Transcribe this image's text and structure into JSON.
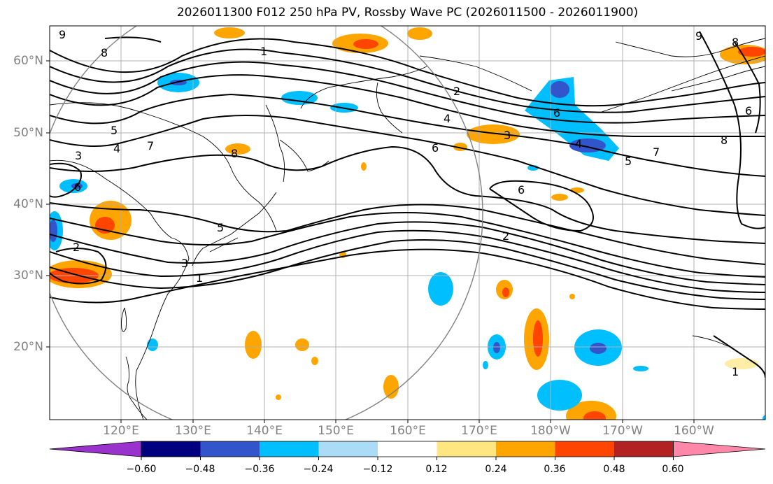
{
  "title": "2026011300 F012 250 hPa PV, Rossby Wave PC (2026011500 - 2026011900)",
  "lat_labels": [
    "60°N",
    "50°N",
    "40°N",
    "30°N",
    "20°N"
  ],
  "lon_labels": [
    "120°E",
    "130°E",
    "140°E",
    "150°E",
    "160°E",
    "170°E",
    "180°W",
    "170°W",
    "160°W"
  ],
  "colorbar": {
    "ticks": [
      "−0.60",
      "−0.48",
      "−0.36",
      "−0.24",
      "−0.12",
      "0.12",
      "0.24",
      "0.36",
      "0.48",
      "0.60"
    ],
    "colors": [
      "#9933cc",
      "#000080",
      "#3355cc",
      "#00bfff",
      "#aadcf8",
      "#ffffff",
      "#ffe680",
      "#ffa500",
      "#ff4500",
      "#b22222",
      "#ff88aa"
    ]
  },
  "contour_labels": [
    "9",
    "8",
    "1",
    "2",
    "4",
    "3",
    "6",
    "7",
    "5",
    "6",
    "4",
    "3",
    "4",
    "5",
    "7",
    "6",
    "5",
    "3",
    "2",
    "6",
    "8",
    "1",
    "2",
    "9",
    "8",
    "6",
    "1",
    "8",
    "6",
    "5",
    "7"
  ]
}
